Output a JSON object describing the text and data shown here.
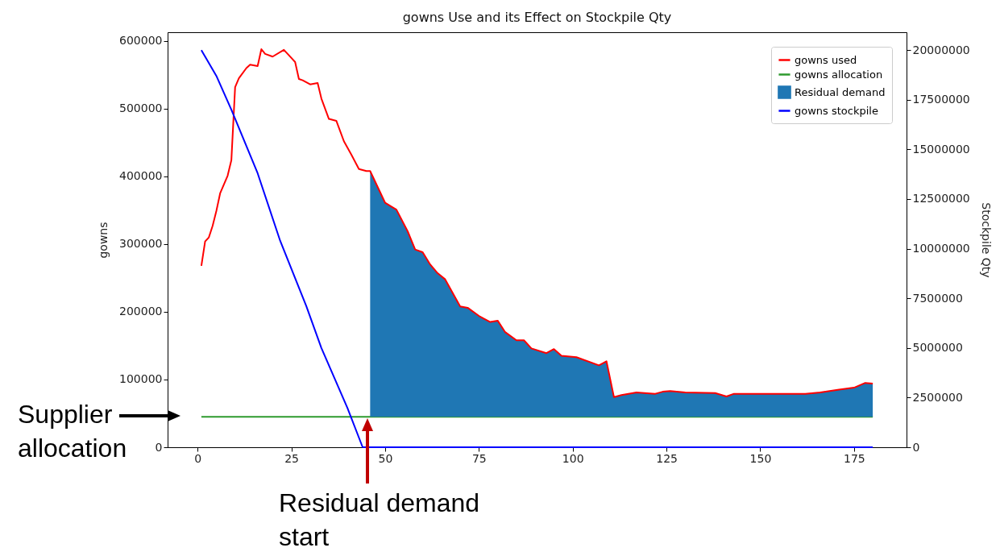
{
  "chart_data": {
    "type": "line",
    "title": "gowns Use and its Effect on Stockpile Qty",
    "ylabel": "gowns",
    "y2label": "Stockpile Qty",
    "xlim": [
      -8,
      189
    ],
    "xticks": [
      0,
      25,
      50,
      75,
      100,
      125,
      150,
      175
    ],
    "ylim": [
      0,
      613000
    ],
    "yticks": [
      0,
      100000,
      200000,
      300000,
      400000,
      500000,
      600000
    ],
    "y2lim": [
      0,
      20900000
    ],
    "y2ticks": [
      0,
      2500000,
      5000000,
      7500000,
      10000000,
      12500000,
      15000000,
      17500000,
      20000000
    ],
    "grid": false,
    "legend": "top right",
    "marker": "none",
    "line_style": "solid",
    "series": [
      {
        "name": "gowns used",
        "color": "#ff0000",
        "x": [
          1,
          2,
          3,
          4,
          5,
          6,
          8,
          9,
          10,
          11,
          13,
          14,
          16,
          17,
          18,
          20,
          23,
          25,
          26,
          27,
          28,
          30,
          32,
          33,
          35,
          37,
          39,
          41,
          43,
          45,
          46,
          50,
          53,
          56,
          58,
          60,
          62,
          64,
          66,
          70,
          72,
          75,
          78,
          80,
          82,
          85,
          87,
          89,
          93,
          95,
          97,
          101,
          107,
          109,
          111,
          113,
          117,
          122,
          124,
          126,
          130,
          138,
          141,
          143,
          152,
          162,
          166,
          171,
          175,
          178,
          180
        ],
        "values": [
          268000,
          304000,
          310000,
          327000,
          349000,
          375000,
          401000,
          424000,
          532000,
          545000,
          560000,
          565000,
          563000,
          588000,
          581000,
          577000,
          587000,
          575000,
          569000,
          544000,
          542000,
          536000,
          538000,
          515000,
          485000,
          482000,
          452000,
          432000,
          411000,
          408000,
          408000,
          361000,
          351000,
          319000,
          292000,
          288000,
          270000,
          257000,
          248000,
          208000,
          206000,
          194000,
          185000,
          187000,
          170000,
          158000,
          158000,
          146000,
          139000,
          145000,
          135000,
          133000,
          121000,
          127000,
          74000,
          77000,
          81000,
          79000,
          82000,
          83000,
          81000,
          80000,
          75000,
          79000,
          79000,
          79000,
          81000,
          85000,
          88000,
          95000,
          94000
        ]
      },
      {
        "name": "gowns allocation",
        "color": "#2e9a2e",
        "x": [
          1,
          180
        ],
        "values": [
          45000,
          45000
        ]
      },
      {
        "name": "Residual demand",
        "type": "area",
        "color": "#1f77b4",
        "x": [
          46,
          50,
          53,
          56,
          58,
          60,
          62,
          64,
          66,
          70,
          72,
          75,
          78,
          80,
          82,
          85,
          87,
          89,
          93,
          95,
          97,
          101,
          107,
          109,
          111,
          113,
          117,
          122,
          124,
          126,
          130,
          138,
          141,
          143,
          152,
          162,
          166,
          171,
          175,
          178,
          180
        ],
        "values": [
          408000,
          361000,
          351000,
          319000,
          292000,
          288000,
          270000,
          257000,
          248000,
          208000,
          206000,
          194000,
          185000,
          187000,
          170000,
          158000,
          158000,
          146000,
          139000,
          145000,
          135000,
          133000,
          121000,
          127000,
          74000,
          77000,
          81000,
          79000,
          82000,
          83000,
          81000,
          80000,
          75000,
          79000,
          79000,
          79000,
          81000,
          85000,
          88000,
          95000,
          94000
        ]
      },
      {
        "name": "gowns stockpile",
        "axis": "y2",
        "color": "#0000ff",
        "x": [
          1,
          5,
          9,
          16,
          22,
          29,
          33,
          40,
          44,
          180
        ],
        "values": [
          20000000,
          18700000,
          17000000,
          13800000,
          10400000,
          7100000,
          5000000,
          1950000,
          0,
          0
        ]
      }
    ],
    "annotations": [
      "Supplier allocation",
      "Residual demand start"
    ]
  }
}
